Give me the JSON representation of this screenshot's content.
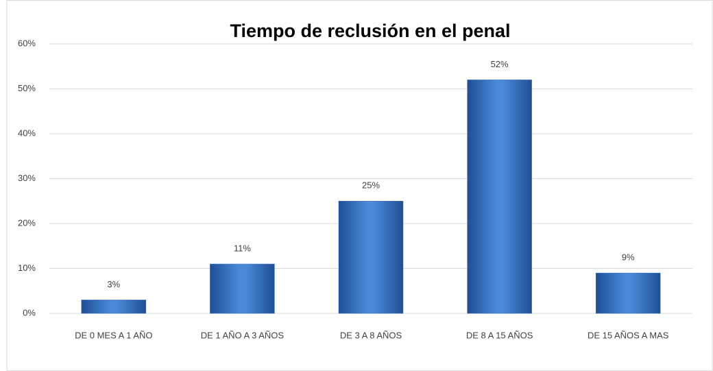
{
  "chart_data": {
    "type": "bar",
    "title": "Tiempo de reclusión en el penal",
    "categories": [
      "DE 0 MES  A 1 AÑO",
      "DE 1 AÑO A 3 AÑOS",
      "DE 3 A 8 AÑOS",
      "DE 8 A 15 AÑOS",
      "DE 15 AÑOS A MAS"
    ],
    "values": [
      3,
      11,
      25,
      52,
      9
    ],
    "value_labels": [
      "3%",
      "11%",
      "25%",
      "52%",
      "9%"
    ],
    "color": "#3a73c4",
    "ylim": [
      0,
      60
    ],
    "yticks": [
      {
        "value": 0,
        "label": "0%"
      },
      {
        "value": 10,
        "label": "10%"
      },
      {
        "value": 20,
        "label": "20%"
      },
      {
        "value": 30,
        "label": "30%"
      },
      {
        "value": 40,
        "label": "40%"
      },
      {
        "value": 50,
        "label": "50%"
      },
      {
        "value": 60,
        "label": "60%"
      }
    ],
    "grid": true
  }
}
